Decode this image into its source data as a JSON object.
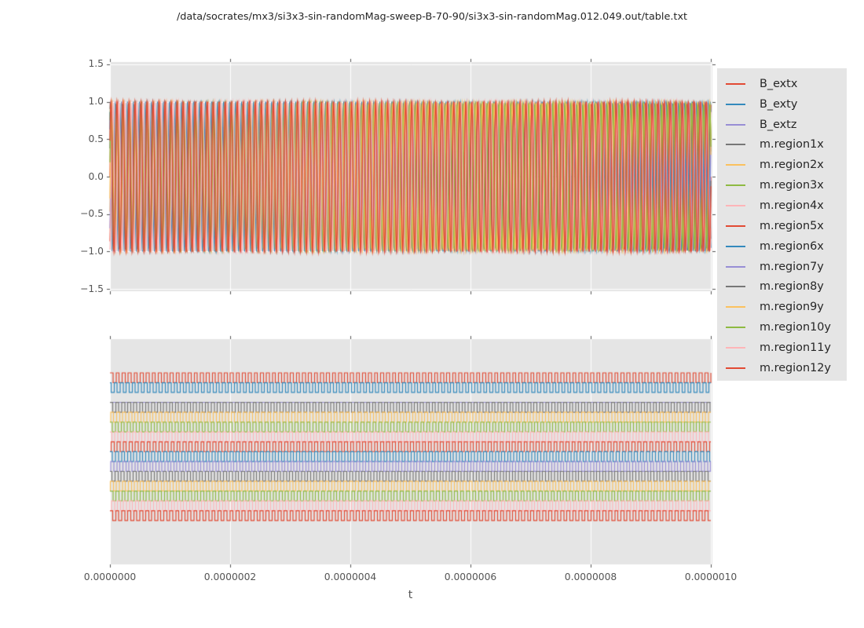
{
  "figure": {
    "title": "/data/socrates/mx3/si3x3-sin-randomMag-sweep-B-70-90/si3x3-sin-randomMag.012.049.out/table.txt"
  },
  "chart_data": {
    "type": "line",
    "title": "/data/socrates/mx3/si3x3-sin-randomMag-sweep-B-70-90/si3x3-sin-randomMag.012.049.out/table.txt",
    "xlabel": "t",
    "x_range": [
      0,
      1e-06
    ],
    "x_tick_values": [
      0,
      2e-07,
      4e-07,
      6e-07,
      8e-07,
      1e-06
    ],
    "x_tick_labels": [
      "0.0000000",
      "0.0000002",
      "0.0000004",
      "0.0000006",
      "0.0000008",
      "0.0000010"
    ],
    "subplots": [
      {
        "name": "signal-values",
        "ylim": [
          -1.53,
          1.53
        ],
        "y_tick_values": [
          1.5,
          1.0,
          0.5,
          0.0,
          -0.5,
          -1.0,
          -1.5
        ],
        "y_tick_labels": [
          "1.5",
          "1.0",
          "0.5",
          "0.0",
          "−0.5",
          "−1.0",
          "−1.5"
        ],
        "grid": true,
        "content": "all 15 series plotted as dense sinusoids, amplitude ~1, ~100 cycles across the time window"
      },
      {
        "name": "signal-signs",
        "y_tick_labels": [],
        "grid": "vertical-only",
        "content": "logic-analyzer view: one square-wave band per series stacked in legend order; constant series drawn flat at band low level"
      }
    ],
    "legend": {
      "position": "right-of-plots"
    },
    "series": [
      {
        "name": "B_extx",
        "color": "#E24A33",
        "waveform": "sine",
        "amplitude": 1.0,
        "cycles": 100.0,
        "phase": 0.0
      },
      {
        "name": "B_exty",
        "color": "#348ABD",
        "waveform": "sine",
        "amplitude": 1.0,
        "cycles": 100.0,
        "phase": 2.1
      },
      {
        "name": "B_extz",
        "color": "#988ED5",
        "waveform": "constant",
        "value": 0.0
      },
      {
        "name": "m.region1x",
        "color": "#777777",
        "waveform": "sine",
        "amplitude": 0.97,
        "cycles": 100.6,
        "phase": 0.4
      },
      {
        "name": "m.region2x",
        "color": "#FBC15E",
        "waveform": "sine",
        "amplitude": 0.98,
        "cycles": 99.5,
        "phase": -0.5
      },
      {
        "name": "m.region3x",
        "color": "#8EBA42",
        "waveform": "sine",
        "amplitude": 0.96,
        "cycles": 100.3,
        "phase": 0.9
      },
      {
        "name": "m.region4x",
        "color": "#FFB5B8",
        "waveform": "sine",
        "amplitude": 0.99,
        "cycles": 99.7,
        "phase": 1.5
      },
      {
        "name": "m.region5x",
        "color": "#E24A33",
        "waveform": "sine",
        "amplitude": 0.97,
        "cycles": 100.4,
        "phase": -1.1
      },
      {
        "name": "m.region6x",
        "color": "#348ABD",
        "waveform": "sine",
        "amplitude": 0.98,
        "cycles": 99.6,
        "phase": 0.7
      },
      {
        "name": "m.region7y",
        "color": "#988ED5",
        "waveform": "sine",
        "amplitude": 0.96,
        "cycles": 100.2,
        "phase": -0.8
      },
      {
        "name": "m.region8y",
        "color": "#777777",
        "waveform": "sine",
        "amplitude": 0.97,
        "cycles": 99.8,
        "phase": 1.2
      },
      {
        "name": "m.region9y",
        "color": "#FBC15E",
        "waveform": "sine",
        "amplitude": 0.98,
        "cycles": 100.5,
        "phase": -0.3
      },
      {
        "name": "m.region10y",
        "color": "#8EBA42",
        "waveform": "sine",
        "amplitude": 0.96,
        "cycles": 99.4,
        "phase": 0.2
      },
      {
        "name": "m.region11y",
        "color": "#FFB5B8",
        "waveform": "sine",
        "amplitude": 0.99,
        "cycles": 100.1,
        "phase": -1.4
      },
      {
        "name": "m.region12y",
        "color": "#E24A33",
        "waveform": "sine",
        "amplitude": 1.0,
        "cycles": 99.9,
        "phase": 0.5
      }
    ],
    "style": {
      "figure_bg": "#FFFFFF",
      "axes_bg": "#E5E5E5",
      "grid_color": "#FFFFFF",
      "tick_color": "#555555",
      "tick_label_color": "#555555",
      "text_color": "#262626",
      "palette": [
        "#E24A33",
        "#348ABD",
        "#988ED5",
        "#777777",
        "#FBC15E",
        "#8EBA42",
        "#FFB5B8"
      ]
    }
  }
}
